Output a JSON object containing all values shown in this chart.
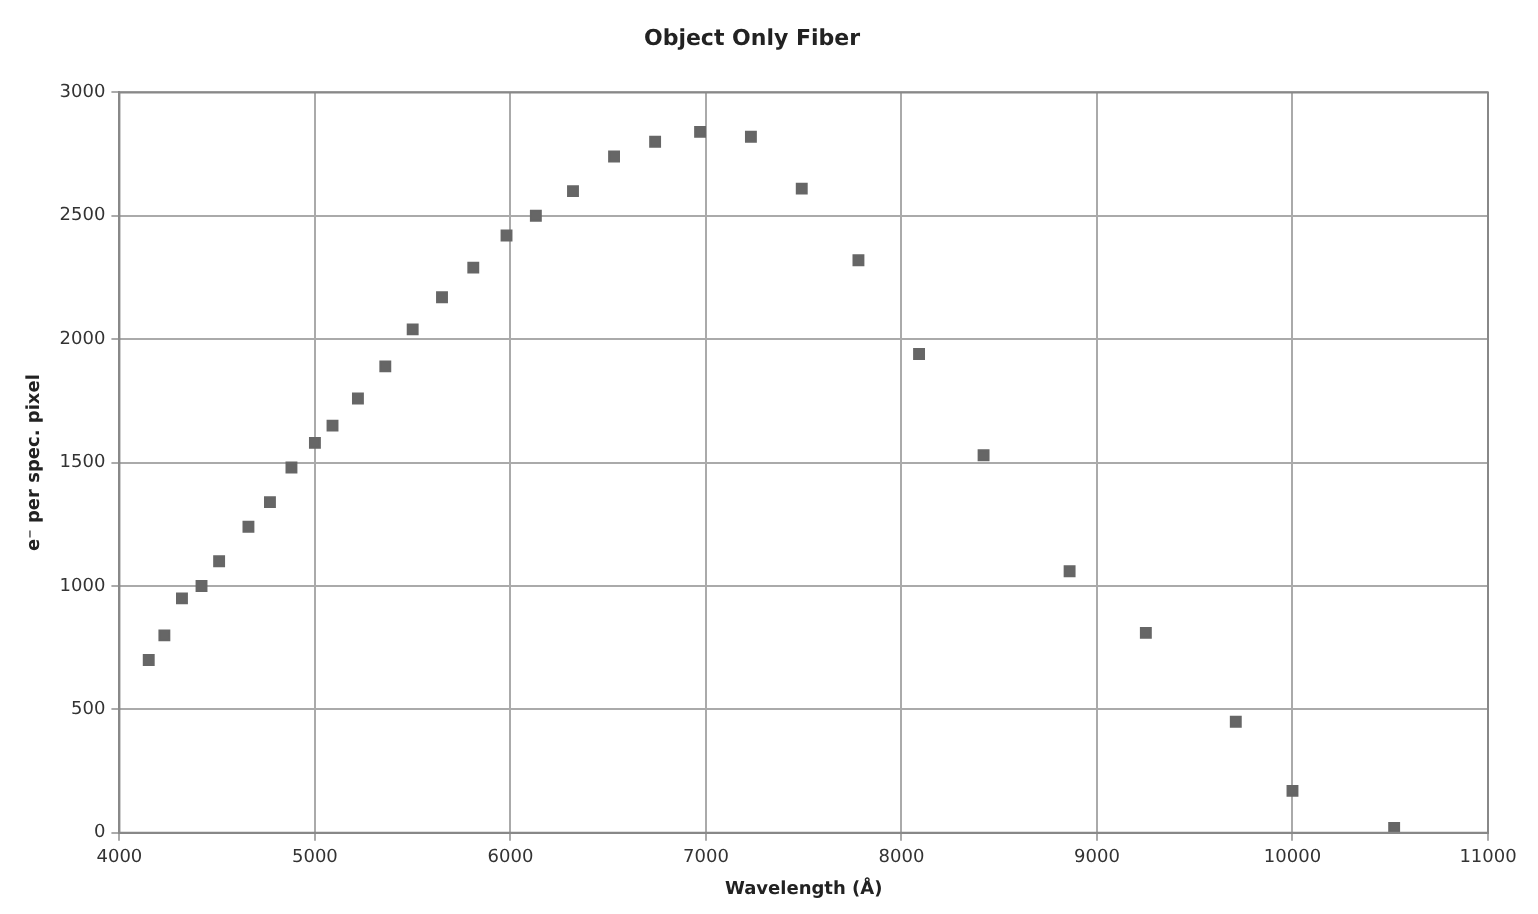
{
  "chart_data": {
    "type": "scatter",
    "title": "Object Only Fiber",
    "xlabel": "Wavelength (Å)",
    "ylabel": "e⁻ per spec. pixel",
    "x": [
      4150,
      4230,
      4320,
      4420,
      4510,
      4660,
      4770,
      4880,
      5000,
      5090,
      5220,
      5360,
      5500,
      5650,
      5810,
      5980,
      6130,
      6320,
      6530,
      6740,
      6970,
      7230,
      7490,
      7780,
      8090,
      8420,
      8860,
      9250,
      9710,
      10000,
      10520
    ],
    "series": [
      {
        "color": "#666666",
        "values": [
          700,
          800,
          950,
          1000,
          1100,
          1240,
          1340,
          1480,
          1580,
          1650,
          1760,
          1890,
          2040,
          2170,
          2290,
          2420,
          2500,
          2600,
          2740,
          2800,
          2840,
          2820,
          2610,
          2320,
          1940,
          1530,
          1060,
          810,
          450,
          170,
          20
        ]
      }
    ],
    "xlim": [
      4000,
      11000
    ],
    "xticks": [
      4000,
      5000,
      6000,
      7000,
      8000,
      9000,
      10000,
      11000
    ],
    "ylim": [
      0,
      3000
    ],
    "yticks": [
      0,
      500,
      1000,
      1500,
      2000,
      2500,
      3000
    ],
    "grid": true,
    "legend": false,
    "marker": "square"
  }
}
